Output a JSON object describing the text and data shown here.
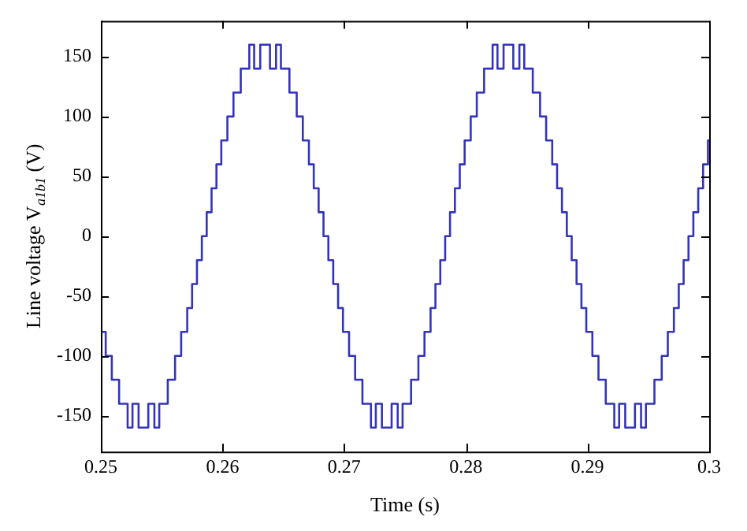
{
  "chart_data": {
    "type": "step",
    "xlabel": "Time (s)",
    "ylabel": "Line voltage V$_{a1b1}$ (V)",
    "color": "#3333bb",
    "marker": "none",
    "grid": false,
    "xlim": [
      0.25,
      0.3
    ],
    "xticks": [
      0.25,
      0.26,
      0.27,
      0.28,
      0.29,
      0.3
    ],
    "ylim": [
      -180,
      180
    ],
    "yticks": [
      -150,
      -100,
      -50,
      0,
      50,
      100,
      150
    ],
    "x": [
      0.25,
      0.2504,
      0.2509,
      0.2515,
      0.2522,
      0.2526,
      0.2531,
      0.2539,
      0.2544,
      0.2548,
      0.2555,
      0.2561,
      0.2566,
      0.2571,
      0.2575,
      0.2579,
      0.2583,
      0.2587,
      0.2591,
      0.2595,
      0.2599,
      0.2604,
      0.2609,
      0.2615,
      0.2622,
      0.2626,
      0.2631,
      0.2639,
      0.2644,
      0.2648,
      0.2655,
      0.2661,
      0.2666,
      0.2671,
      0.2675,
      0.2679,
      0.2683,
      0.2687,
      0.2691,
      0.2695,
      0.2699,
      0.2704,
      0.2709,
      0.2715,
      0.2722,
      0.2726,
      0.2731,
      0.2739,
      0.2744,
      0.2748,
      0.2755,
      0.2761,
      0.2766,
      0.2771,
      0.2775,
      0.2779,
      0.2783,
      0.2787,
      0.2791,
      0.2795,
      0.2799,
      0.2804,
      0.2809,
      0.2815,
      0.2822,
      0.2826,
      0.2831,
      0.2839,
      0.2844,
      0.2848,
      0.2855,
      0.2861,
      0.2866,
      0.2871,
      0.2875,
      0.2879,
      0.2883,
      0.2887,
      0.2891,
      0.2895,
      0.2899,
      0.2904,
      0.2909,
      0.2915,
      0.2922,
      0.2926,
      0.2931,
      0.2939,
      0.2944,
      0.2948,
      0.2955,
      0.2961,
      0.2966,
      0.2971,
      0.2975,
      0.2979,
      0.2983,
      0.2987,
      0.2991,
      0.2995,
      0.2999,
      0.3
    ],
    "values": [
      -80,
      -100,
      -120,
      -140,
      -160,
      -140,
      -160,
      -140,
      -160,
      -140,
      -120,
      -100,
      -80,
      -60,
      -40,
      -20,
      0,
      20,
      40,
      60,
      80,
      100,
      120,
      140,
      160,
      140,
      160,
      140,
      160,
      140,
      120,
      100,
      80,
      60,
      40,
      20,
      0,
      -20,
      -40,
      -60,
      -80,
      -100,
      -120,
      -140,
      -160,
      -140,
      -160,
      -140,
      -160,
      -140,
      -120,
      -100,
      -80,
      -60,
      -40,
      -20,
      0,
      20,
      40,
      60,
      80,
      100,
      120,
      140,
      160,
      140,
      160,
      140,
      160,
      140,
      120,
      100,
      80,
      60,
      40,
      20,
      0,
      -20,
      -40,
      -60,
      -80,
      -100,
      -120,
      -140,
      -160,
      -140,
      -160,
      -140,
      -160,
      -140,
      -120,
      -100,
      -80,
      -60,
      -40,
      -20,
      0,
      20,
      40,
      60,
      80,
      80
    ]
  }
}
